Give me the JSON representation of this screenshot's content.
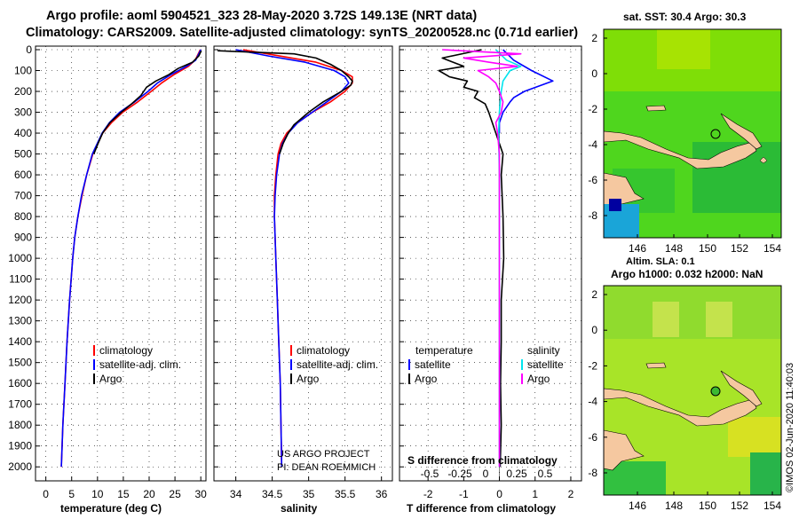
{
  "header": {
    "line1": "Argo profile: aoml 5904521_323 28-May-2020 3.72S 149.13E (NRT data)",
    "line2": "Climatology: CARS2009. Satellite-adjusted climatology: synTS_20200528.nc (0.71d earlier)"
  },
  "colors": {
    "climatology": "#ff0000",
    "satellite": "#0000ff",
    "argo": "#000000",
    "salinity_sat": "#00e5ee",
    "salinity_argo": "#ff00ff",
    "land": "#f5c8a0"
  },
  "chart_data": [
    {
      "type": "line",
      "id": "temperature",
      "xlabel": "temperature (deg C)",
      "xlim": [
        -2,
        31
      ],
      "xticks": [
        0,
        5,
        10,
        15,
        20,
        25,
        30
      ],
      "ylim": [
        0,
        2050
      ],
      "yticks": [
        0,
        100,
        200,
        300,
        400,
        500,
        600,
        700,
        800,
        900,
        1000,
        1100,
        1200,
        1300,
        1400,
        1500,
        1600,
        1700,
        1800,
        1900,
        2000
      ],
      "legend": [
        "climatology",
        "satellite-adj. clim.",
        "Argo"
      ],
      "series": [
        {
          "name": "climatology",
          "color": "#ff0000",
          "depth": [
            0,
            20,
            50,
            80,
            120,
            160,
            200,
            250,
            300,
            350,
            400,
            500,
            600,
            700,
            800,
            900,
            1000,
            1200,
            1400,
            1600,
            1800,
            2000
          ],
          "values": [
            29.9,
            29.5,
            28.9,
            27.6,
            24.8,
            22.4,
            20.4,
            17.8,
            14.9,
            12.7,
            11.0,
            9.1,
            7.9,
            7.0,
            6.2,
            5.6,
            5.2,
            4.6,
            4.1,
            3.7,
            3.3,
            3.0
          ]
        },
        {
          "name": "satellite-adj. clim.",
          "color": "#0000ff",
          "depth": [
            0,
            20,
            50,
            80,
            120,
            160,
            200,
            250,
            300,
            350,
            400,
            500,
            600,
            700,
            800,
            900,
            1000,
            1200,
            1400,
            1600,
            1800,
            2000
          ],
          "values": [
            30.0,
            29.6,
            29.0,
            27.2,
            24.2,
            21.6,
            19.8,
            17.2,
            14.3,
            12.3,
            10.9,
            9.0,
            7.9,
            6.9,
            6.2,
            5.6,
            5.2,
            4.6,
            4.1,
            3.7,
            3.3,
            3.0
          ]
        },
        {
          "name": "Argo",
          "color": "#000000",
          "depth": [
            5,
            15,
            30,
            60,
            90,
            120,
            150,
            180,
            220,
            260,
            300,
            350,
            400,
            450,
            500
          ],
          "values": [
            30.1,
            29.9,
            29.6,
            28.4,
            25.6,
            23.8,
            21.3,
            19.5,
            18.4,
            16.6,
            14.6,
            12.4,
            11.0,
            10.1,
            9.3
          ]
        }
      ]
    },
    {
      "type": "line",
      "id": "salinity",
      "xlabel": "salinity",
      "xlim": [
        33.7,
        36.15
      ],
      "xticks": [
        34,
        34.5,
        35,
        35.5,
        36
      ],
      "ylim": [
        0,
        2050
      ],
      "legend": [
        "climatology",
        "satellite-adj. clim.",
        "Argo"
      ],
      "credit": [
        "US ARGO PROJECT",
        "PI: DEAN ROEMMICH"
      ],
      "series": [
        {
          "name": "climatology",
          "color": "#ff0000",
          "depth": [
            0,
            30,
            60,
            100,
            130,
            160,
            200,
            250,
            300,
            350,
            400,
            450,
            500,
            600,
            700,
            800,
            900,
            1000,
            1200,
            1400,
            1600,
            1800,
            2000
          ],
          "values": [
            34.1,
            34.6,
            35.1,
            35.45,
            35.6,
            35.6,
            35.5,
            35.3,
            35.05,
            34.85,
            34.7,
            34.62,
            34.58,
            34.55,
            34.53,
            34.53,
            34.54,
            34.55,
            34.57,
            34.59,
            34.61,
            34.62,
            34.63
          ]
        },
        {
          "name": "satellite-adj. clim.",
          "color": "#0000ff",
          "depth": [
            0,
            30,
            60,
            100,
            130,
            160,
            200,
            250,
            300,
            350,
            400,
            450,
            500,
            600,
            700,
            800,
            900,
            1000,
            1200,
            1400,
            1600,
            1800,
            2000
          ],
          "values": [
            34.0,
            34.45,
            34.95,
            35.35,
            35.5,
            35.55,
            35.45,
            35.25,
            35.05,
            34.85,
            34.72,
            34.64,
            34.6,
            34.56,
            34.54,
            34.53,
            34.54,
            34.55,
            34.57,
            34.59,
            34.61,
            34.62,
            34.63
          ]
        },
        {
          "name": "Argo",
          "color": "#000000",
          "depth": [
            5,
            20,
            40,
            70,
            100,
            130,
            150,
            170,
            200,
            250,
            300,
            330,
            360,
            400,
            450,
            500
          ],
          "values": [
            33.75,
            34.8,
            35.1,
            35.3,
            35.45,
            35.55,
            35.6,
            35.58,
            35.45,
            35.2,
            35.0,
            34.9,
            34.8,
            34.72,
            34.65,
            34.6
          ]
        }
      ]
    },
    {
      "type": "line",
      "id": "difference",
      "xlabel": "T difference from climatology",
      "xlim": [
        -2.8,
        2.3
      ],
      "xticks": [
        -2,
        -1,
        0,
        1,
        2
      ],
      "secondary_xlabel": "S difference from climatology",
      "secondary_xticks": [
        "-0.5",
        "-0.25",
        "0",
        "0.25",
        "0.5"
      ],
      "ylim": [
        0,
        2050
      ],
      "legend_titles": [
        "temperature",
        "salinity"
      ],
      "legend": [
        "satellite",
        "Argo",
        "satellite",
        "Argo"
      ],
      "series": [
        {
          "name": "temperature satellite",
          "color": "#0000ff",
          "depth": [
            0,
            50,
            100,
            150,
            200,
            230,
            250,
            300,
            350,
            400
          ],
          "values": [
            0.1,
            0.4,
            0.9,
            1.5,
            0.7,
            0.4,
            0.3,
            0.1,
            0.0,
            0.0
          ]
        },
        {
          "name": "temperature Argo",
          "color": "#000000",
          "depth": [
            0,
            40,
            80,
            100,
            130,
            150,
            180,
            200,
            230,
            260,
            300,
            350,
            400,
            500,
            600,
            800,
            1000,
            1200,
            1400,
            1600,
            1800,
            2000
          ],
          "values": [
            -0.5,
            -1.6,
            -1.0,
            -1.7,
            -1.4,
            -0.9,
            -1.0,
            -0.6,
            -0.7,
            -0.4,
            -0.3,
            -0.2,
            -0.1,
            0.1,
            0.05,
            0.1,
            0.12,
            0.05,
            0.05,
            0.03,
            0.05,
            0.02
          ]
        },
        {
          "name": "salinity satellite",
          "color": "#00e5ee",
          "depth": [
            0,
            50,
            80,
            100,
            150,
            200,
            300,
            400,
            600,
            800,
            1000,
            1400,
            1800,
            2000
          ],
          "values": [
            -0.1,
            0.2,
            0.6,
            0.3,
            0.1,
            0.05,
            0.0,
            -0.02,
            0.0,
            0.0,
            0.0,
            0.0,
            0.0,
            0.0
          ]
        },
        {
          "name": "salinity Argo",
          "color": "#ff00ff",
          "depth": [
            0,
            20,
            40,
            60,
            80,
            100,
            130,
            160,
            200,
            250,
            300,
            350,
            400,
            500,
            700,
            900,
            1200,
            1500,
            1800,
            2000
          ],
          "values": [
            -1.6,
            0.6,
            -1.0,
            -0.3,
            0.5,
            -0.6,
            -0.3,
            -0.1,
            0.0,
            0.1,
            0.05,
            -0.1,
            -0.05,
            0.0,
            0.0,
            0.0,
            0.0,
            0.0,
            0.0,
            0.0
          ]
        }
      ]
    }
  ],
  "maps": [
    {
      "id": "sst",
      "title": "sat. SST: 30.4 Argo: 30.3",
      "lon_ticks": [
        "146",
        "148",
        "150",
        "152",
        "154"
      ],
      "lat_ticks": [
        "2",
        "0",
        "-2",
        "-4",
        "-6",
        "-8"
      ],
      "caption": "Altim. SLA: 0.1"
    },
    {
      "id": "h",
      "title": "Argo h1000: 0.032 h2000: NaN",
      "lon_ticks": [
        "146",
        "148",
        "150",
        "152",
        "154"
      ],
      "lat_ticks": [
        "2",
        "0",
        "-2",
        "-4",
        "-6",
        "-8"
      ]
    }
  ],
  "watermark": "©IMOS 02-Jun-2020 11:40:03"
}
